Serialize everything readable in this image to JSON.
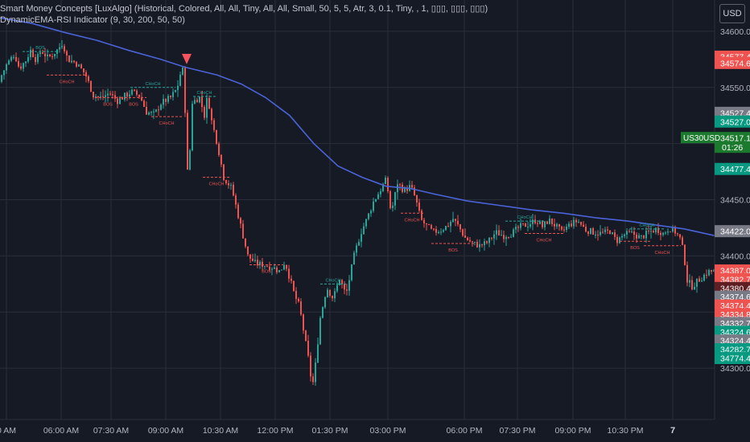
{
  "indicators": [
    "Smart Money Concepts [LuxAlgo] (Historical, Colored, All, All, Tiny, All, All, Small, 50, 5, 5, Atr, 3, 0.1, Tiny, , 1, ▯▯▯, ▯▯▯, ▯▯▯)",
    "DynamicEMA-RSI Indicator (9, 30, 200, 50, 50)"
  ],
  "currency_button": "USD",
  "symbol_label": "US30USD",
  "countdown": "01:26",
  "colors": {
    "bg": "#161a25",
    "grid": "#2a2e39",
    "up": "#26a69a",
    "down": "#ef5350",
    "ema": "#4a63d8",
    "axis_text": "#b2b5be"
  },
  "chart_data": {
    "type": "candlestick",
    "title": "",
    "ylim": [
      34260,
      34625
    ],
    "y_ticks": [
      34600.0,
      34550.0,
      34500.0,
      34450.0,
      34400.0,
      34350.0,
      34300.0
    ],
    "x_ticks": [
      "0 AM",
      "06:00 AM",
      "07:30 AM",
      "09:00 AM",
      "10:30 AM",
      "12:00 PM",
      "01:30 PM",
      "03:00 PM",
      "06:00 PM",
      "07:30 PM",
      "09:00 PM",
      "10:30 PM",
      "7"
    ],
    "x_bold": [
      "7"
    ],
    "price_path": [
      [
        0,
        34555
      ],
      [
        10,
        34570
      ],
      [
        20,
        34580
      ],
      [
        26,
        34567
      ],
      [
        34,
        34574
      ],
      [
        40,
        34583
      ],
      [
        47,
        34574
      ],
      [
        53,
        34583
      ],
      [
        62,
        34576
      ],
      [
        74,
        34584
      ],
      [
        80,
        34590
      ],
      [
        86,
        34575
      ],
      [
        96,
        34572
      ],
      [
        108,
        34562
      ],
      [
        118,
        34543
      ],
      [
        128,
        34541
      ],
      [
        138,
        34545
      ],
      [
        148,
        34538
      ],
      [
        158,
        34543
      ],
      [
        166,
        34546
      ],
      [
        176,
        34542
      ],
      [
        184,
        34528
      ],
      [
        194,
        34526
      ],
      [
        202,
        34536
      ],
      [
        214,
        34541
      ],
      [
        222,
        34549
      ],
      [
        228,
        34568
      ],
      [
        231,
        34560
      ],
      [
        232,
        34530
      ],
      [
        233,
        34470
      ],
      [
        237,
        34480
      ],
      [
        241,
        34537
      ],
      [
        250,
        34541
      ],
      [
        256,
        34525
      ],
      [
        260,
        34543
      ],
      [
        265,
        34520
      ],
      [
        272,
        34500
      ],
      [
        280,
        34470
      ],
      [
        290,
        34460
      ],
      [
        300,
        34430
      ],
      [
        310,
        34400
      ],
      [
        320,
        34393
      ],
      [
        330,
        34392
      ],
      [
        340,
        34390
      ],
      [
        350,
        34386
      ],
      [
        356,
        34395
      ],
      [
        362,
        34380
      ],
      [
        368,
        34365
      ],
      [
        374,
        34355
      ],
      [
        380,
        34330
      ],
      [
        386,
        34305
      ],
      [
        390,
        34282
      ],
      [
        394,
        34303
      ],
      [
        400,
        34345
      ],
      [
        408,
        34372
      ],
      [
        416,
        34362
      ],
      [
        424,
        34380
      ],
      [
        432,
        34365
      ],
      [
        442,
        34400
      ],
      [
        450,
        34420
      ],
      [
        458,
        34433
      ],
      [
        466,
        34448
      ],
      [
        474,
        34458
      ],
      [
        482,
        34468
      ],
      [
        488,
        34438
      ],
      [
        496,
        34465
      ],
      [
        504,
        34458
      ],
      [
        512,
        34462
      ],
      [
        518,
        34452
      ],
      [
        525,
        34432
      ],
      [
        533,
        34426
      ],
      [
        540,
        34421
      ],
      [
        550,
        34423
      ],
      [
        558,
        34427
      ],
      [
        565,
        34433
      ],
      [
        572,
        34426
      ],
      [
        580,
        34416
      ],
      [
        590,
        34411
      ],
      [
        598,
        34409
      ],
      [
        608,
        34412
      ],
      [
        618,
        34421
      ],
      [
        628,
        34418
      ],
      [
        638,
        34420
      ],
      [
        648,
        34426
      ],
      [
        658,
        34428
      ],
      [
        668,
        34432
      ],
      [
        676,
        34426
      ],
      [
        684,
        34432
      ],
      [
        692,
        34427
      ],
      [
        700,
        34421
      ],
      [
        710,
        34428
      ],
      [
        720,
        34431
      ],
      [
        730,
        34423
      ],
      [
        740,
        34421
      ],
      [
        750,
        34420
      ],
      [
        760,
        34422
      ],
      [
        768,
        34413
      ],
      [
        778,
        34419
      ],
      [
        788,
        34420
      ],
      [
        798,
        34416
      ],
      [
        808,
        34421
      ],
      [
        818,
        34424
      ],
      [
        826,
        34420
      ],
      [
        834,
        34425
      ],
      [
        842,
        34421
      ],
      [
        848,
        34414
      ],
      [
        852,
        34400
      ],
      [
        856,
        34378
      ],
      [
        862,
        34373
      ],
      [
        868,
        34377
      ],
      [
        876,
        34382
      ],
      [
        882,
        34386
      ],
      [
        888,
        34386
      ]
    ],
    "ema_path": [
      [
        0,
        34612
      ],
      [
        40,
        34607
      ],
      [
        80,
        34599
      ],
      [
        120,
        34592
      ],
      [
        160,
        34583
      ],
      [
        200,
        34575
      ],
      [
        230,
        34568
      ],
      [
        270,
        34561
      ],
      [
        300,
        34553
      ],
      [
        330,
        34541
      ],
      [
        360,
        34525
      ],
      [
        390,
        34500
      ],
      [
        420,
        34480
      ],
      [
        450,
        34470
      ],
      [
        480,
        34462
      ],
      [
        510,
        34460
      ],
      [
        540,
        34455
      ],
      [
        580,
        34449
      ],
      [
        620,
        34445
      ],
      [
        660,
        34441
      ],
      [
        700,
        34438
      ],
      [
        740,
        34434
      ],
      [
        780,
        34431
      ],
      [
        820,
        34427
      ],
      [
        850,
        34424
      ],
      [
        888,
        34418
      ]
    ],
    "smc_levels": [
      {
        "type": "BOS",
        "dir": "bull",
        "x1": 28,
        "x2": 72,
        "y": 34582,
        "label_y": "above"
      },
      {
        "type": "CHoCH",
        "dir": "bear",
        "x1": 58,
        "x2": 108,
        "y": 34561,
        "label_y": "below"
      },
      {
        "type": "BOS",
        "dir": "bear",
        "x1": 118,
        "x2": 150,
        "y": 34541,
        "label_y": "below"
      },
      {
        "type": "BOS",
        "dir": "bear",
        "x1": 150,
        "x2": 182,
        "y": 34541,
        "label_y": "below"
      },
      {
        "type": "CHoCH",
        "dir": "bull",
        "x1": 162,
        "x2": 218,
        "y": 34550,
        "label_y": "above"
      },
      {
        "type": "CHoCH",
        "dir": "bear",
        "x1": 188,
        "x2": 226,
        "y": 34524,
        "label_y": "below"
      },
      {
        "type": "CHoCH",
        "dir": "bull",
        "x1": 240,
        "x2": 268,
        "y": 34542,
        "label_y": "above"
      },
      {
        "type": "CHoCH",
        "dir": "bear",
        "x1": 252,
        "x2": 286,
        "y": 34470,
        "label_y": "below"
      },
      {
        "type": "BOS",
        "dir": "bear",
        "x1": 310,
        "x2": 352,
        "y": 34392,
        "label_y": "below"
      },
      {
        "type": "CHoCH",
        "dir": "bull",
        "x1": 398,
        "x2": 430,
        "y": 34375,
        "label_y": "above"
      },
      {
        "type": "CHoCH",
        "dir": "bear",
        "x1": 498,
        "x2": 526,
        "y": 34438,
        "label_y": "below"
      },
      {
        "type": "BOS",
        "dir": "bear",
        "x1": 536,
        "x2": 590,
        "y": 34411,
        "label_y": "below"
      },
      {
        "type": "CHoCH",
        "dir": "bull",
        "x1": 628,
        "x2": 676,
        "y": 34431,
        "label_y": "above"
      },
      {
        "type": "CHoCH",
        "dir": "bear",
        "x1": 652,
        "x2": 700,
        "y": 34420,
        "label_y": "below"
      },
      {
        "type": "CHoCH",
        "dir": "bull",
        "x1": 782,
        "x2": 826,
        "y": 34424,
        "label_y": "above"
      },
      {
        "type": "BOS",
        "dir": "bear",
        "x1": 770,
        "x2": 808,
        "y": 34413,
        "label_y": "below"
      },
      {
        "type": "CHoCH",
        "dir": "bear",
        "x1": 800,
        "x2": 846,
        "y": 34409,
        "label_y": "below"
      }
    ],
    "signal_marker": {
      "dir": "sell",
      "x": 232,
      "y": 34567
    },
    "price_labels": [
      {
        "value": "34577.4",
        "y": 34577.4,
        "color": "#ef5350"
      },
      {
        "value": "34574.6",
        "y": 34571.8,
        "color": "#ef5350"
      },
      {
        "value": "34527.4",
        "y": 34527.4,
        "color": "#787b86"
      },
      {
        "value": "34527.0",
        "y": 34519.6,
        "color": "#089981"
      },
      {
        "value": "34517.1",
        "y": 34505.0,
        "color": "#1b7a2e",
        "countdown": true
      },
      {
        "value": "34477.4",
        "y": 34477.4,
        "color": "#089981"
      },
      {
        "value": "34422.0",
        "y": 34422.0,
        "color": "#787b86"
      },
      {
        "value": "34387.0",
        "y": 34387.0,
        "color": "#ef5350"
      },
      {
        "value": "34382.7",
        "y": 34379.2,
        "color": "#ef5350"
      },
      {
        "value": "34380.4",
        "y": 34371.4,
        "color": "#5e1e22"
      },
      {
        "value": "34374.6",
        "y": 34363.6,
        "color": "#787b86"
      },
      {
        "value": "34374.4",
        "y": 34355.8,
        "color": "#ef5350"
      },
      {
        "value": "34334.8",
        "y": 34348.0,
        "color": "#ef5350"
      },
      {
        "value": "34332.7",
        "y": 34340.2,
        "color": "#787b86"
      },
      {
        "value": "34324.6",
        "y": 34332.4,
        "color": "#089981"
      },
      {
        "value": "34324.4",
        "y": 34324.6,
        "color": "#787b86"
      },
      {
        "value": "34282.7",
        "y": 34316.8,
        "color": "#089981"
      },
      {
        "value": "34774.4",
        "y": 34309.0,
        "color": "#089981"
      }
    ]
  }
}
